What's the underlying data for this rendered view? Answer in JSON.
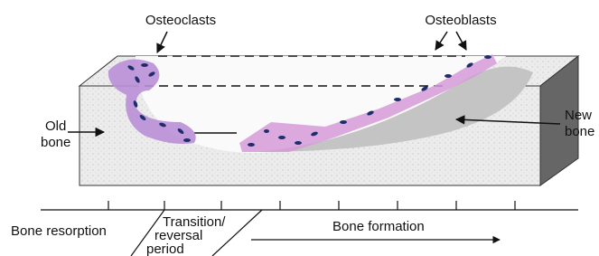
{
  "labels": {
    "osteoclasts": "Osteoclasts",
    "osteoblasts": "Osteoblasts",
    "old_bone": [
      "Old",
      "bone"
    ],
    "new_bone": [
      "New",
      "bone"
    ]
  },
  "phases": {
    "resorption": "Bone resorption",
    "transition": [
      "Transition/",
      "reversal",
      "period"
    ],
    "formation": "Bone formation"
  }
}
